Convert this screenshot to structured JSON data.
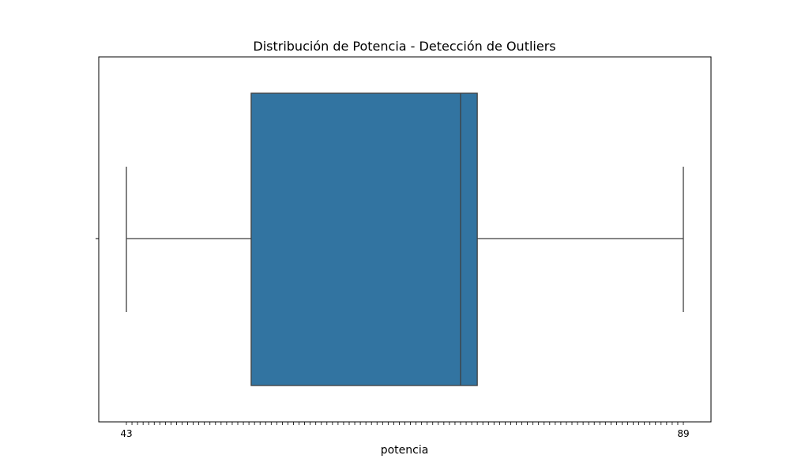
{
  "chart_data": {
    "type": "boxplot",
    "title": "Distribución de Potencia - Detección de Outliers",
    "xlabel": "potencia",
    "ylabel": "",
    "orientation": "horizontal",
    "x_axis": "categorical",
    "x_tick_count": 100,
    "x_tick_first_label": "43",
    "x_tick_last_label": "89",
    "box": {
      "whisker_low_index": 0,
      "q1_index": 22.4,
      "median_index": 60,
      "q3_index": 63,
      "whisker_high_index": 100
    },
    "colors": {
      "box_fill": "#3274a1",
      "line": "#3f3f3f"
    },
    "grid": false,
    "legend": "none"
  }
}
